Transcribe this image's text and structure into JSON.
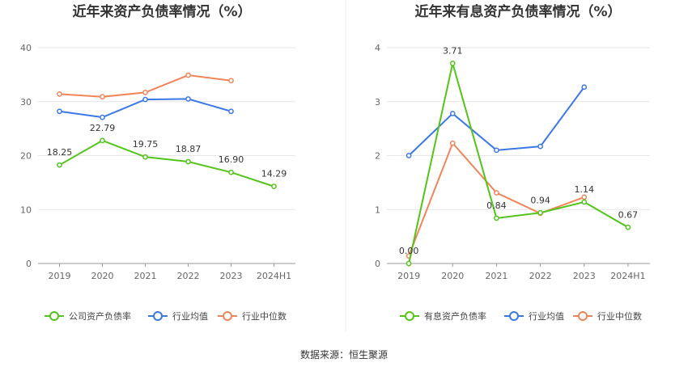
{
  "source": "数据来源：恒生聚源",
  "chart_data": [
    {
      "type": "line",
      "title": "近年来资产负债率情况（%）",
      "categories": [
        "2019",
        "2020",
        "2021",
        "2022",
        "2023",
        "2024H1"
      ],
      "ylim": [
        0,
        40
      ],
      "yticks": [
        "0",
        "10",
        "20",
        "30",
        "40"
      ],
      "grid": true,
      "legend_position": "bottom",
      "series": [
        {
          "name": "公司资产负债率",
          "color": "#52c41a",
          "values": [
            18.25,
            22.79,
            19.75,
            18.87,
            16.9,
            14.29
          ],
          "labels": [
            "18.25",
            "22.79",
            "19.75",
            "18.87",
            "16.90",
            "14.29"
          ]
        },
        {
          "name": "行业均值",
          "color": "#3b78e7",
          "values": [
            28.2,
            27.1,
            30.4,
            30.5,
            28.2,
            null
          ]
        },
        {
          "name": "行业中位数",
          "color": "#f0855a",
          "values": [
            31.4,
            30.9,
            31.7,
            34.9,
            33.9,
            null
          ]
        }
      ]
    },
    {
      "type": "line",
      "title": "近年来有息资产负债率情况（%）",
      "categories": [
        "2019",
        "2020",
        "2021",
        "2022",
        "2023",
        "2024H1"
      ],
      "ylim": [
        0,
        4
      ],
      "yticks": [
        "0",
        "1",
        "2",
        "3",
        "4"
      ],
      "grid": true,
      "legend_position": "bottom",
      "series": [
        {
          "name": "有息资产负债率",
          "color": "#52c41a",
          "values": [
            0.0,
            3.71,
            0.84,
            0.94,
            1.14,
            0.67
          ],
          "labels": [
            "0.00",
            "3.71",
            "0.84",
            "0.94",
            "1.14",
            "0.67"
          ]
        },
        {
          "name": "行业均值",
          "color": "#3b78e7",
          "values": [
            2.0,
            2.78,
            2.1,
            2.17,
            3.27,
            null
          ]
        },
        {
          "name": "行业中位数",
          "color": "#f0855a",
          "values": [
            0.14,
            2.23,
            1.31,
            0.93,
            1.23,
            null
          ]
        }
      ]
    }
  ]
}
